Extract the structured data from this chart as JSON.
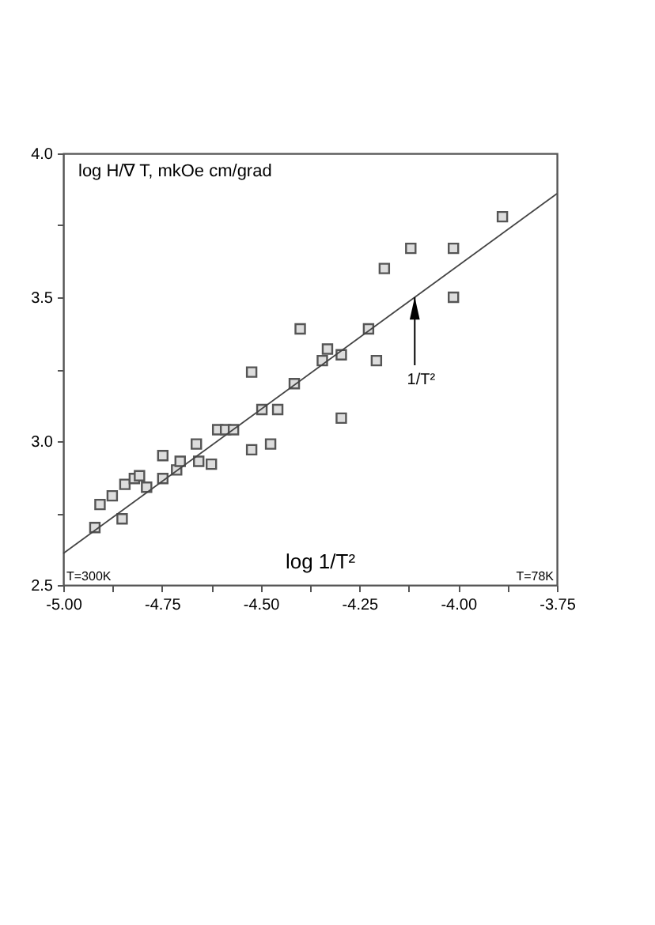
{
  "chart_data": {
    "type": "scatter",
    "ylabel": "log H/∇ T, mkOe cm/grad",
    "xlabel": "log 1/T²",
    "annotations": [
      "T=300K",
      "T=78K",
      {
        "text": "1/T²",
        "x": -4.11,
        "y": 3.5
      }
    ],
    "series": [
      {
        "color": "#555555",
        "marker": "square",
        "x": [
          -4.92,
          -4.907,
          -4.876,
          -4.851,
          -4.844,
          -4.82,
          -4.807,
          -4.789,
          -4.748,
          -4.748,
          -4.713,
          -4.704,
          -4.663,
          -4.657,
          -4.625,
          -4.609,
          -4.589,
          -4.569,
          -4.523,
          -4.523,
          -4.497,
          -4.475,
          -4.457,
          -4.415,
          -4.4,
          -4.344,
          -4.331,
          -4.296,
          -4.296,
          -4.227,
          -4.207,
          -4.187,
          -4.12,
          -4.012,
          -4.012,
          -3.888
        ],
        "values": [
          2.7,
          2.78,
          2.81,
          2.73,
          2.85,
          2.87,
          2.88,
          2.84,
          2.95,
          2.87,
          2.9,
          2.93,
          2.99,
          2.93,
          2.92,
          3.04,
          3.04,
          3.04,
          3.24,
          2.97,
          3.11,
          2.99,
          3.11,
          3.2,
          3.39,
          3.28,
          3.32,
          3.3,
          3.08,
          3.39,
          3.28,
          3.6,
          3.67,
          3.67,
          3.5,
          3.78
        ]
      },
      {
        "type": "line",
        "color": "#444444",
        "marker": "none",
        "line_style": "solid",
        "x": [
          -5,
          -3.75
        ],
        "values": [
          2.61,
          3.86
        ]
      }
    ],
    "xlim": [
      -5,
      -3.75
    ],
    "ylim": [
      2.5,
      4.0
    ],
    "xticks": [
      {
        "value": -5,
        "label": "-5.00"
      },
      {
        "value": -4.875,
        "label": null
      },
      -4.75,
      {
        "value": -4.625,
        "label": null
      },
      {
        "value": -4.5,
        "label": "-4.50"
      },
      {
        "value": -4.375,
        "label": null
      },
      -4.25,
      {
        "value": -4.125,
        "label": null
      },
      {
        "value": -4,
        "label": "-4.00"
      },
      {
        "value": -3.875,
        "label": null
      },
      -3.75
    ],
    "yticks": [
      2.5,
      {
        "value": 2.75,
        "label": null
      },
      {
        "value": 3,
        "label": "3.0"
      },
      {
        "value": 3.25,
        "label": null
      },
      3.5,
      {
        "value": 3.75,
        "label": null
      },
      {
        "value": 4,
        "label": "4.0"
      }
    ],
    "grid": false
  }
}
